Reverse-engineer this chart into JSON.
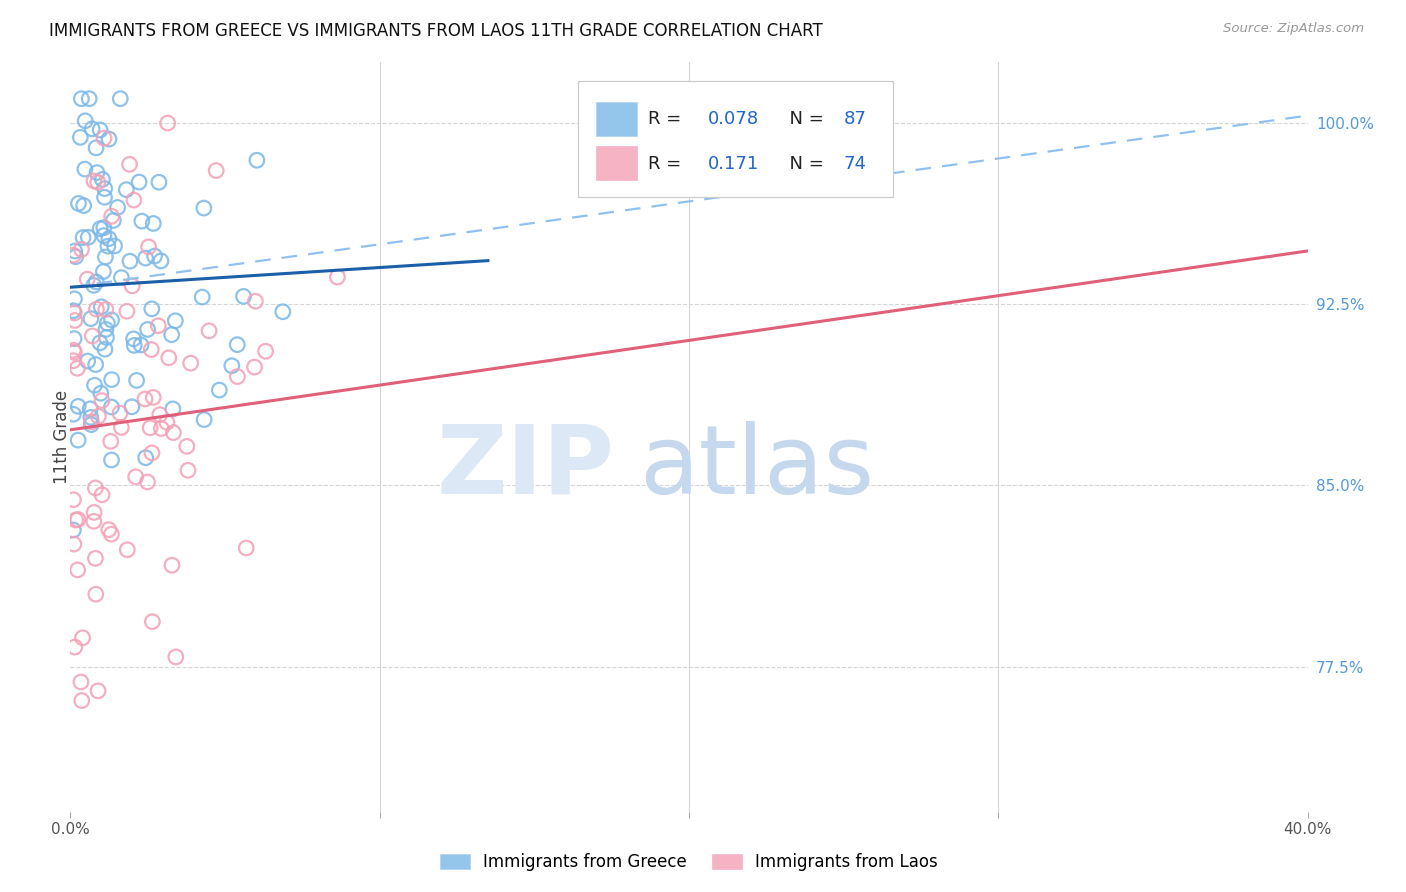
{
  "title": "IMMIGRANTS FROM GREECE VS IMMIGRANTS FROM LAOS 11TH GRADE CORRELATION CHART",
  "source": "Source: ZipAtlas.com",
  "ylabel": "11th Grade",
  "ylabel_right_labels": [
    "100.0%",
    "92.5%",
    "85.0%",
    "77.5%"
  ],
  "ylabel_right_values": [
    1.0,
    0.925,
    0.85,
    0.775
  ],
  "legend_label_blue": "Immigrants from Greece",
  "legend_label_pink": "Immigrants from Laos",
  "xmin": 0.0,
  "xmax": 0.4,
  "ymin": 0.715,
  "ymax": 1.025,
  "blue_color": "#7ab8e8",
  "pink_color": "#f4a0b5",
  "blue_line_color": "#1a5fa8",
  "pink_line_color": "#e0607a",
  "dashed_line_color": "#90c0f0",
  "blue_line_x0": 0.0,
  "blue_line_y0": 0.932,
  "blue_line_x1": 0.135,
  "blue_line_y1": 0.943,
  "dashed_line_x0": 0.0,
  "dashed_line_y0": 0.932,
  "dashed_line_x1": 0.4,
  "dashed_line_y1": 1.003,
  "pink_line_x0": 0.0,
  "pink_line_y0": 0.873,
  "pink_line_x1": 0.4,
  "pink_line_y1": 0.947,
  "N_blue": 87,
  "N_pink": 74
}
